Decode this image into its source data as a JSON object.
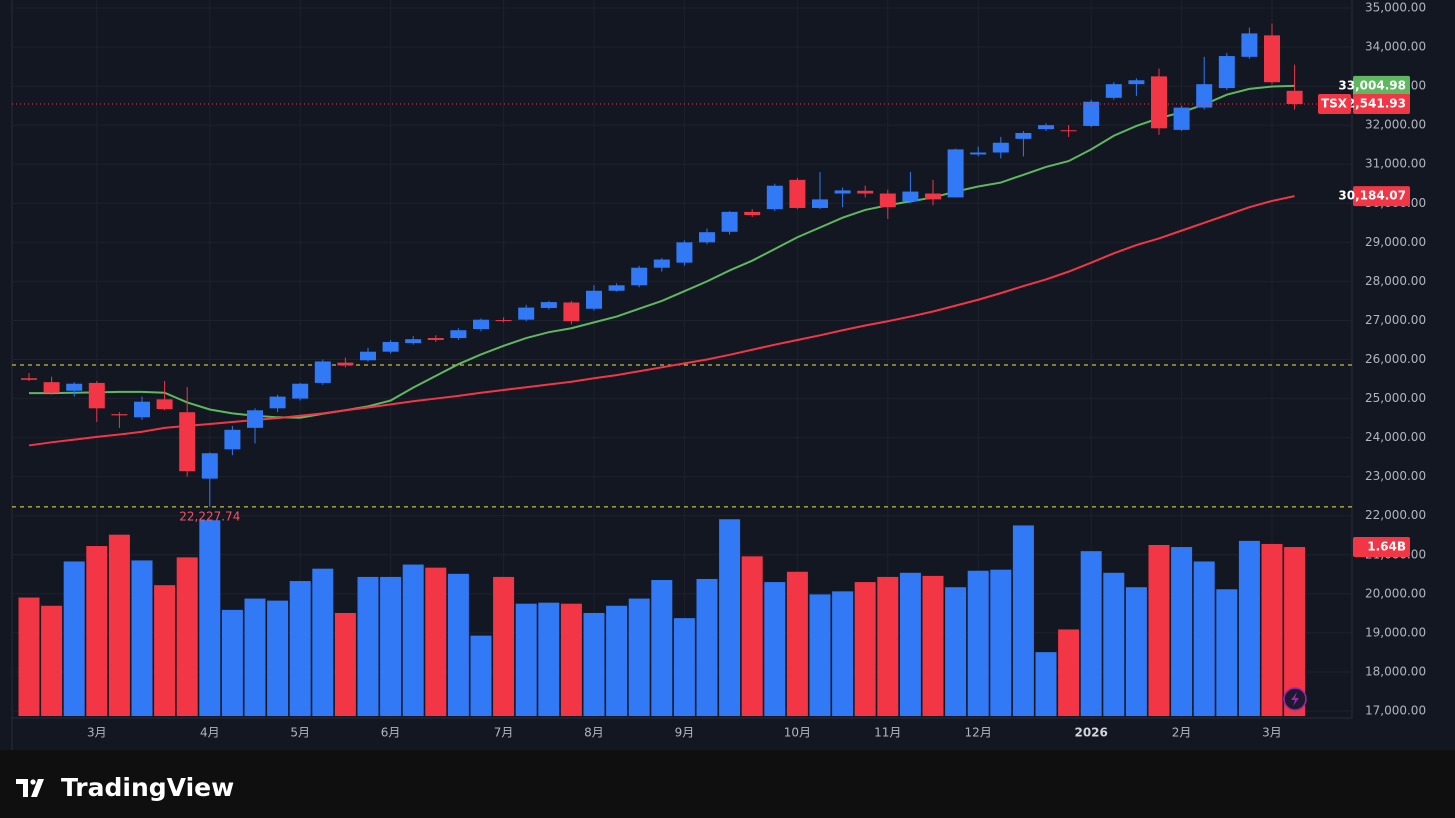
{
  "chart_data": {
    "type": "candlestick",
    "symbol": "TSX",
    "categories": [
      null,
      null,
      null,
      "3月",
      null,
      null,
      null,
      null,
      "4月",
      null,
      null,
      null,
      "5月",
      null,
      null,
      null,
      "6月",
      null,
      null,
      null,
      null,
      "7月",
      null,
      null,
      null,
      "8月",
      null,
      null,
      null,
      "9月",
      null,
      null,
      null,
      null,
      "10月",
      null,
      null,
      null,
      "11月",
      null,
      null,
      null,
      "12月",
      null,
      null,
      null,
      null,
      "2026",
      null,
      null,
      null,
      "2月",
      null,
      null,
      null,
      "3月",
      null
    ],
    "open": [
      25520,
      25420,
      25200,
      25400,
      24600,
      24520,
      24980,
      24650,
      22950,
      23700,
      24250,
      24750,
      25000,
      25400,
      25920,
      25980,
      26200,
      26420,
      26550,
      26550,
      26780,
      27010,
      27020,
      27320,
      27460,
      27300,
      27760,
      27900,
      28350,
      28480,
      29000,
      29270,
      29780,
      29850,
      30600,
      29880,
      30250,
      30320,
      30250,
      30050,
      30250,
      30150,
      31250,
      31300,
      31650,
      31900,
      31870,
      31980,
      32700,
      33050,
      33250,
      31880,
      32450,
      32950,
      33750,
      34300,
      32880
    ],
    "high": [
      25650,
      25560,
      25420,
      25450,
      24650,
      25050,
      25450,
      25300,
      23620,
      24300,
      24750,
      25100,
      25400,
      26000,
      26050,
      26300,
      26500,
      26600,
      26620,
      26800,
      27050,
      27080,
      27400,
      27500,
      27500,
      27900,
      27950,
      28400,
      28600,
      29050,
      29350,
      29800,
      29850,
      30500,
      30650,
      30800,
      30400,
      30450,
      30350,
      30800,
      30600,
      31400,
      31450,
      31700,
      31850,
      32050,
      32000,
      32650,
      33100,
      33200,
      33450,
      32500,
      33750,
      33850,
      34500,
      34600,
      33550
    ],
    "low": [
      25450,
      25100,
      25050,
      24400,
      24250,
      24450,
      24700,
      23000,
      22227.74,
      23550,
      23850,
      24650,
      24950,
      25350,
      25800,
      25950,
      26150,
      26380,
      26450,
      26500,
      26720,
      26950,
      26980,
      27280,
      26900,
      27250,
      27740,
      27850,
      28250,
      28400,
      28950,
      29200,
      29650,
      29800,
      29850,
      29850,
      29900,
      30150,
      29600,
      30000,
      29950,
      30150,
      31200,
      31150,
      31200,
      31850,
      31700,
      31950,
      32650,
      32750,
      31750,
      31850,
      32400,
      32900,
      33700,
      33050,
      32400
    ],
    "close": [
      25480,
      25150,
      25380,
      24750,
      24570,
      24920,
      24730,
      23140,
      23600,
      24200,
      24700,
      25050,
      25380,
      25950,
      25850,
      26200,
      26450,
      26520,
      26500,
      26750,
      27020,
      27000,
      27330,
      27470,
      26980,
      27760,
      27900,
      28350,
      28560,
      29000,
      29260,
      29780,
      29700,
      30450,
      29880,
      30100,
      30330,
      30250,
      29900,
      30300,
      30100,
      31380,
      31300,
      31550,
      31800,
      32000,
      31850,
      32600,
      33050,
      33150,
      31920,
      32450,
      33050,
      33770,
      34350,
      33100,
      32541.93
    ],
    "up_color": "#3179f5",
    "down_color": "#f23645",
    "last_label": "32,541.93",
    "low_label": "22,227.74",
    "hlines": [
      25860,
      22227.74
    ],
    "hline_color": "#f5e642",
    "moving_averages": [
      {
        "color": "#5fb85f",
        "last_label": "33,004.98",
        "values": [
          25140,
          25140,
          25150,
          25160,
          25170,
          25170,
          25150,
          24900,
          24720,
          24620,
          24560,
          24520,
          24510,
          24610,
          24700,
          24800,
          24950,
          25280,
          25580,
          25880,
          26130,
          26350,
          26550,
          26700,
          26800,
          26950,
          27100,
          27300,
          27500,
          27750,
          28000,
          28280,
          28530,
          28830,
          29130,
          29380,
          29630,
          29830,
          29950,
          30050,
          30150,
          30300,
          30430,
          30530,
          30730,
          30930,
          31080,
          31380,
          31730,
          31980,
          32180,
          32330,
          32530,
          32780,
          32930,
          32990,
          33004.98
        ]
      },
      {
        "color": "#f23645",
        "last_label": "30,184.07",
        "values": [
          23800,
          23880,
          23950,
          24020,
          24080,
          24150,
          24250,
          24300,
          24350,
          24400,
          24450,
          24500,
          24560,
          24620,
          24700,
          24770,
          24850,
          24930,
          25000,
          25070,
          25150,
          25220,
          25290,
          25360,
          25430,
          25520,
          25600,
          25700,
          25800,
          25900,
          26000,
          26120,
          26250,
          26380,
          26500,
          26620,
          26750,
          26870,
          26980,
          27100,
          27230,
          27380,
          27530,
          27700,
          27880,
          28050,
          28250,
          28480,
          28720,
          28930,
          29100,
          29300,
          29500,
          29700,
          29900,
          30060,
          30184.07
        ]
      }
    ],
    "volume": {
      "values": [
        1.15,
        1.07,
        1.5,
        1.65,
        1.76,
        1.51,
        1.27,
        1.54,
        1.9,
        1.03,
        1.14,
        1.12,
        1.31,
        1.43,
        1.0,
        1.35,
        1.35,
        1.47,
        1.44,
        1.38,
        0.78,
        1.35,
        1.09,
        1.1,
        1.09,
        1.0,
        1.07,
        1.14,
        1.32,
        0.95,
        1.33,
        1.91,
        1.55,
        1.3,
        1.4,
        1.18,
        1.21,
        1.3,
        1.35,
        1.39,
        1.36,
        1.25,
        1.41,
        1.42,
        1.85,
        0.62,
        0.84,
        1.6,
        1.39,
        1.25,
        1.66,
        1.64,
        1.5,
        1.23,
        1.7,
        1.67,
        1.64
      ],
      "y2lim": [
        0,
        6.95
      ],
      "last_label": "1.64B"
    },
    "ylim": [
      16821,
      35205
    ],
    "yticks": [
      {
        "value": 17000,
        "label": "17,000.00"
      },
      {
        "value": 18000,
        "label": "18,000.00"
      },
      {
        "value": 19000,
        "label": "19,000.00"
      },
      {
        "value": 20000,
        "label": "20,000.00"
      },
      {
        "value": 21000,
        "label": "21,000.00"
      },
      {
        "value": 22000,
        "label": "22,000.00"
      },
      {
        "value": 23000,
        "label": "23,000.00"
      },
      {
        "value": 24000,
        "label": "24,000.00"
      },
      {
        "value": 25000,
        "label": "25,000.00"
      },
      {
        "value": 26000,
        "label": "26,000.00"
      },
      {
        "value": 27000,
        "label": "27,000.00"
      },
      {
        "value": 28000,
        "label": "28,000.00"
      },
      {
        "value": 29000,
        "label": "29,000.00"
      },
      {
        "value": 30000,
        "label": "30,000.00"
      },
      {
        "value": 31000,
        "label": "31,000.00"
      },
      {
        "value": 32000,
        "label": "32,000.00"
      },
      {
        "value": 33000,
        "label": "33,000.00"
      },
      {
        "value": 34000,
        "label": "34,000.00"
      },
      {
        "value": 35000,
        "label": "35,000.00"
      }
    ],
    "grid": true
  },
  "brand": "TradingView"
}
